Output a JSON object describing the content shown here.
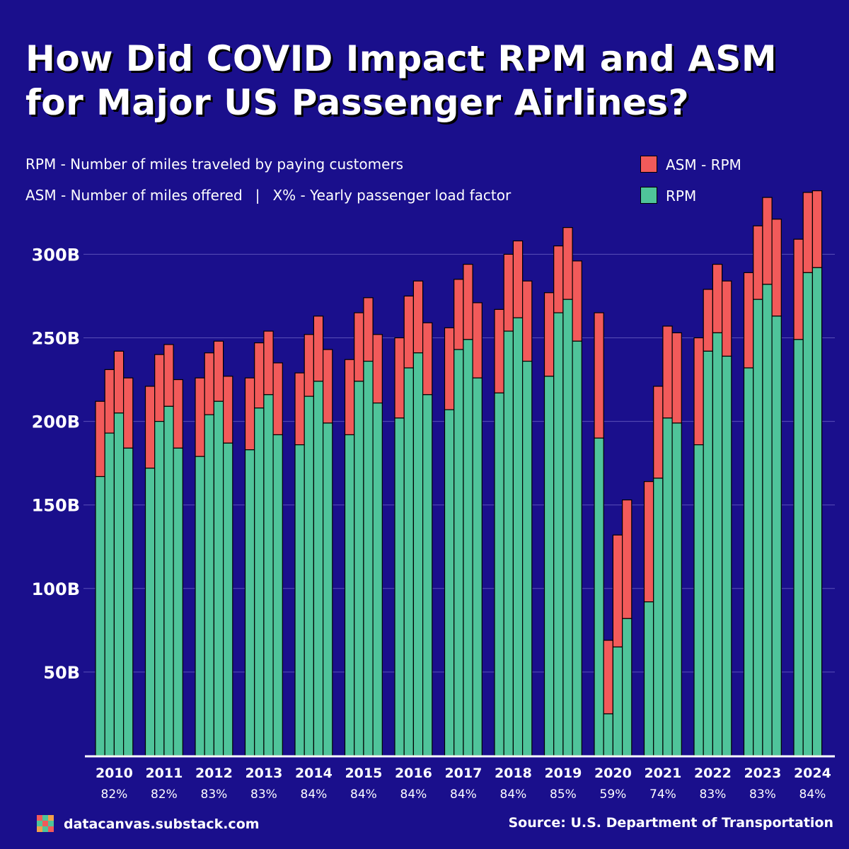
{
  "header": {
    "title_line1": "How Did COVID Impact RPM and ASM",
    "title_line2": "for Major US Passenger Airlines?",
    "note_rpm": "RPM - Number of miles traveled by paying customers",
    "note_asm": "ASM - Number of miles offered",
    "note_sep": "|",
    "note_lf": "X% - Yearly passenger load factor"
  },
  "footer": {
    "site": "datacanvas.substack.com",
    "source": "Source: U.S. Department of Transportation"
  },
  "colors": {
    "background": "#1a0f8c",
    "rpm": "#4fc49a",
    "asm_minus_rpm": "#f25a5a",
    "grid": "#5a50b8",
    "axis": "#ffffff"
  },
  "chart_data": {
    "type": "bar",
    "stacked": true,
    "unit": "B",
    "ylim": [
      0,
      330
    ],
    "yticks": [
      50,
      100,
      150,
      200,
      250,
      300
    ],
    "ytick_labels": [
      "50B",
      "100B",
      "150B",
      "200B",
      "250B",
      "300B"
    ],
    "grid": true,
    "legend_position": "top-right",
    "legend": [
      {
        "name": "ASM - RPM",
        "color": "#f25a5a"
      },
      {
        "name": "RPM",
        "color": "#4fc49a"
      }
    ],
    "years": [
      "2010",
      "2011",
      "2012",
      "2013",
      "2014",
      "2015",
      "2016",
      "2017",
      "2018",
      "2019",
      "2020",
      "2021",
      "2022",
      "2023",
      "2024"
    ],
    "load_factors": [
      "82%",
      "82%",
      "83%",
      "83%",
      "84%",
      "84%",
      "84%",
      "84%",
      "84%",
      "85%",
      "59%",
      "74%",
      "83%",
      "83%",
      "84%"
    ],
    "rpm": [
      [
        167,
        193,
        205,
        184
      ],
      [
        172,
        200,
        209,
        184
      ],
      [
        179,
        204,
        212,
        187
      ],
      [
        183,
        208,
        216,
        192
      ],
      [
        186,
        215,
        224,
        199
      ],
      [
        192,
        224,
        236,
        211
      ],
      [
        202,
        232,
        241,
        216
      ],
      [
        207,
        243,
        249,
        226
      ],
      [
        217,
        254,
        262,
        236
      ],
      [
        227,
        265,
        273,
        248
      ],
      [
        190,
        25,
        65,
        82
      ],
      [
        92,
        166,
        202,
        199
      ],
      [
        186,
        242,
        253,
        239
      ],
      [
        232,
        273,
        282,
        263
      ],
      [
        249,
        289,
        292
      ]
    ],
    "asm": [
      [
        212,
        231,
        242,
        226
      ],
      [
        221,
        240,
        246,
        225
      ],
      [
        226,
        241,
        248,
        227
      ],
      [
        226,
        247,
        254,
        235
      ],
      [
        229,
        252,
        263,
        243
      ],
      [
        237,
        265,
        274,
        252
      ],
      [
        250,
        275,
        284,
        259
      ],
      [
        256,
        285,
        294,
        271
      ],
      [
        267,
        300,
        308,
        284
      ],
      [
        277,
        305,
        316,
        296
      ],
      [
        265,
        69,
        132,
        153
      ],
      [
        164,
        221,
        257,
        253
      ],
      [
        250,
        279,
        294,
        284
      ],
      [
        289,
        317,
        334,
        321
      ],
      [
        309,
        337,
        338
      ]
    ]
  }
}
